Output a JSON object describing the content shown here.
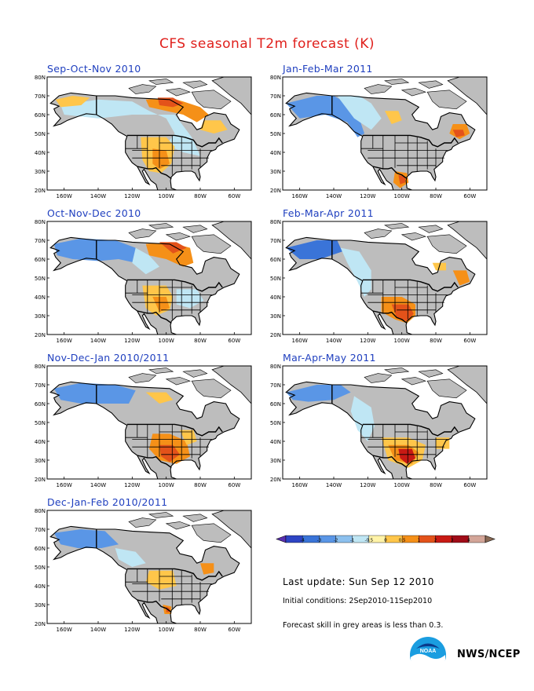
{
  "title": "CFS seasonal T2m forecast (K)",
  "axis": {
    "lat_labels": [
      "80N",
      "70N",
      "60N",
      "50N",
      "40N",
      "30N",
      "20N"
    ],
    "lon_labels": [
      "160W",
      "140W",
      "120W",
      "100W",
      "80W",
      "60W"
    ]
  },
  "panels": [
    {
      "title": "Sep-Oct-Nov 2010"
    },
    {
      "title": "Jan-Feb-Mar 2011"
    },
    {
      "title": "Oct-Nov-Dec 2010"
    },
    {
      "title": "Feb-Mar-Apr 2011"
    },
    {
      "title": "Nov-Dec-Jan 2010/2011"
    },
    {
      "title": "Mar-Apr-May 2011"
    },
    {
      "title": "Dec-Jan-Feb 2010/2011"
    }
  ],
  "legend": {
    "ticks": [
      "-4",
      "-3",
      "-2",
      "-1",
      "-0.5",
      "0",
      "0.5",
      "1",
      "2",
      "3",
      "4"
    ],
    "colors": [
      "#5a2fb0",
      "#2d44c4",
      "#3a74d8",
      "#5a96e6",
      "#8cc0ee",
      "#bfe6f4",
      "#fff3a8",
      "#ffc64a",
      "#f59018",
      "#e3521a",
      "#c81a14",
      "#a00c18",
      "#d3a598",
      "#8a6a55"
    ]
  },
  "last_update": "Last update: Sun Sep 12 2010",
  "initial_conditions": "Initial conditions: 2Sep2010-11Sep2010",
  "skill_note": "Forecast skill in grey areas is less than 0.3.",
  "agency": "NWS/NCEP",
  "colors": {
    "title": "#e0201c",
    "panel_title": "#1f3fbf",
    "grey": "#bdbdbd",
    "blue_light": "#bfe6f4",
    "blue": "#5a96e6",
    "blue_dark": "#3a74d8",
    "yellow": "#fff3a8",
    "orange": "#f59018",
    "orange_light": "#ffc64a",
    "red": "#e3521a",
    "darkred": "#c81a14"
  }
}
